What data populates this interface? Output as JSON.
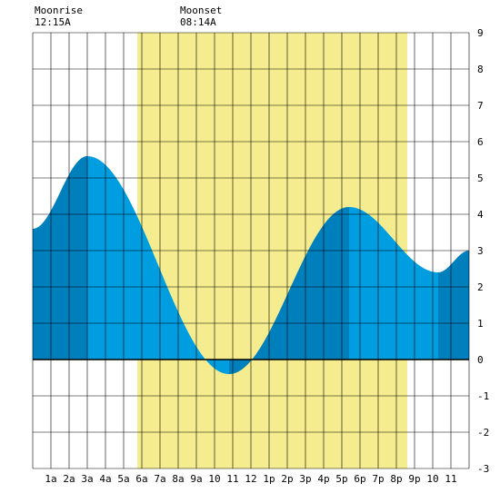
{
  "moon_events": [
    {
      "label": "Moonrise",
      "time": "12:15A"
    },
    {
      "label": "Moonset",
      "time": "08:14A"
    }
  ],
  "colors": {
    "daylight": "#f4ec8e",
    "tide_fill": "#009ee0",
    "tide_rising_fill": "#007fbd",
    "grid": "#000000",
    "zero_line": "#000000",
    "background": "#ffffff"
  },
  "chart_data": {
    "type": "area",
    "xlabel": "",
    "ylabel": "",
    "x_ticks": [
      "1a",
      "2a",
      "3a",
      "4a",
      "5a",
      "6a",
      "7a",
      "8a",
      "9a",
      "10",
      "11",
      "12",
      "1p",
      "2p",
      "3p",
      "4p",
      "5p",
      "6p",
      "7p",
      "8p",
      "9p",
      "10",
      "11"
    ],
    "xlim": [
      0,
      24
    ],
    "ylim": [
      -3,
      9
    ],
    "y_ticks": [
      9,
      8,
      7,
      6,
      5,
      4,
      3,
      2,
      1,
      0,
      -1,
      -2,
      -3
    ],
    "y_axis_side": "right",
    "grid": true,
    "daylight_hours": [
      5.75,
      20.6
    ],
    "tide_extremes": [
      {
        "hour": 0.0,
        "height": 3.6
      },
      {
        "hour": 3.0,
        "height": 5.6
      },
      {
        "hour": 10.8,
        "height": -0.4
      },
      {
        "hour": 17.4,
        "height": 4.2
      },
      {
        "hour": 22.3,
        "height": 2.4
      },
      {
        "hour": 24.0,
        "height": 3.0
      }
    ]
  }
}
